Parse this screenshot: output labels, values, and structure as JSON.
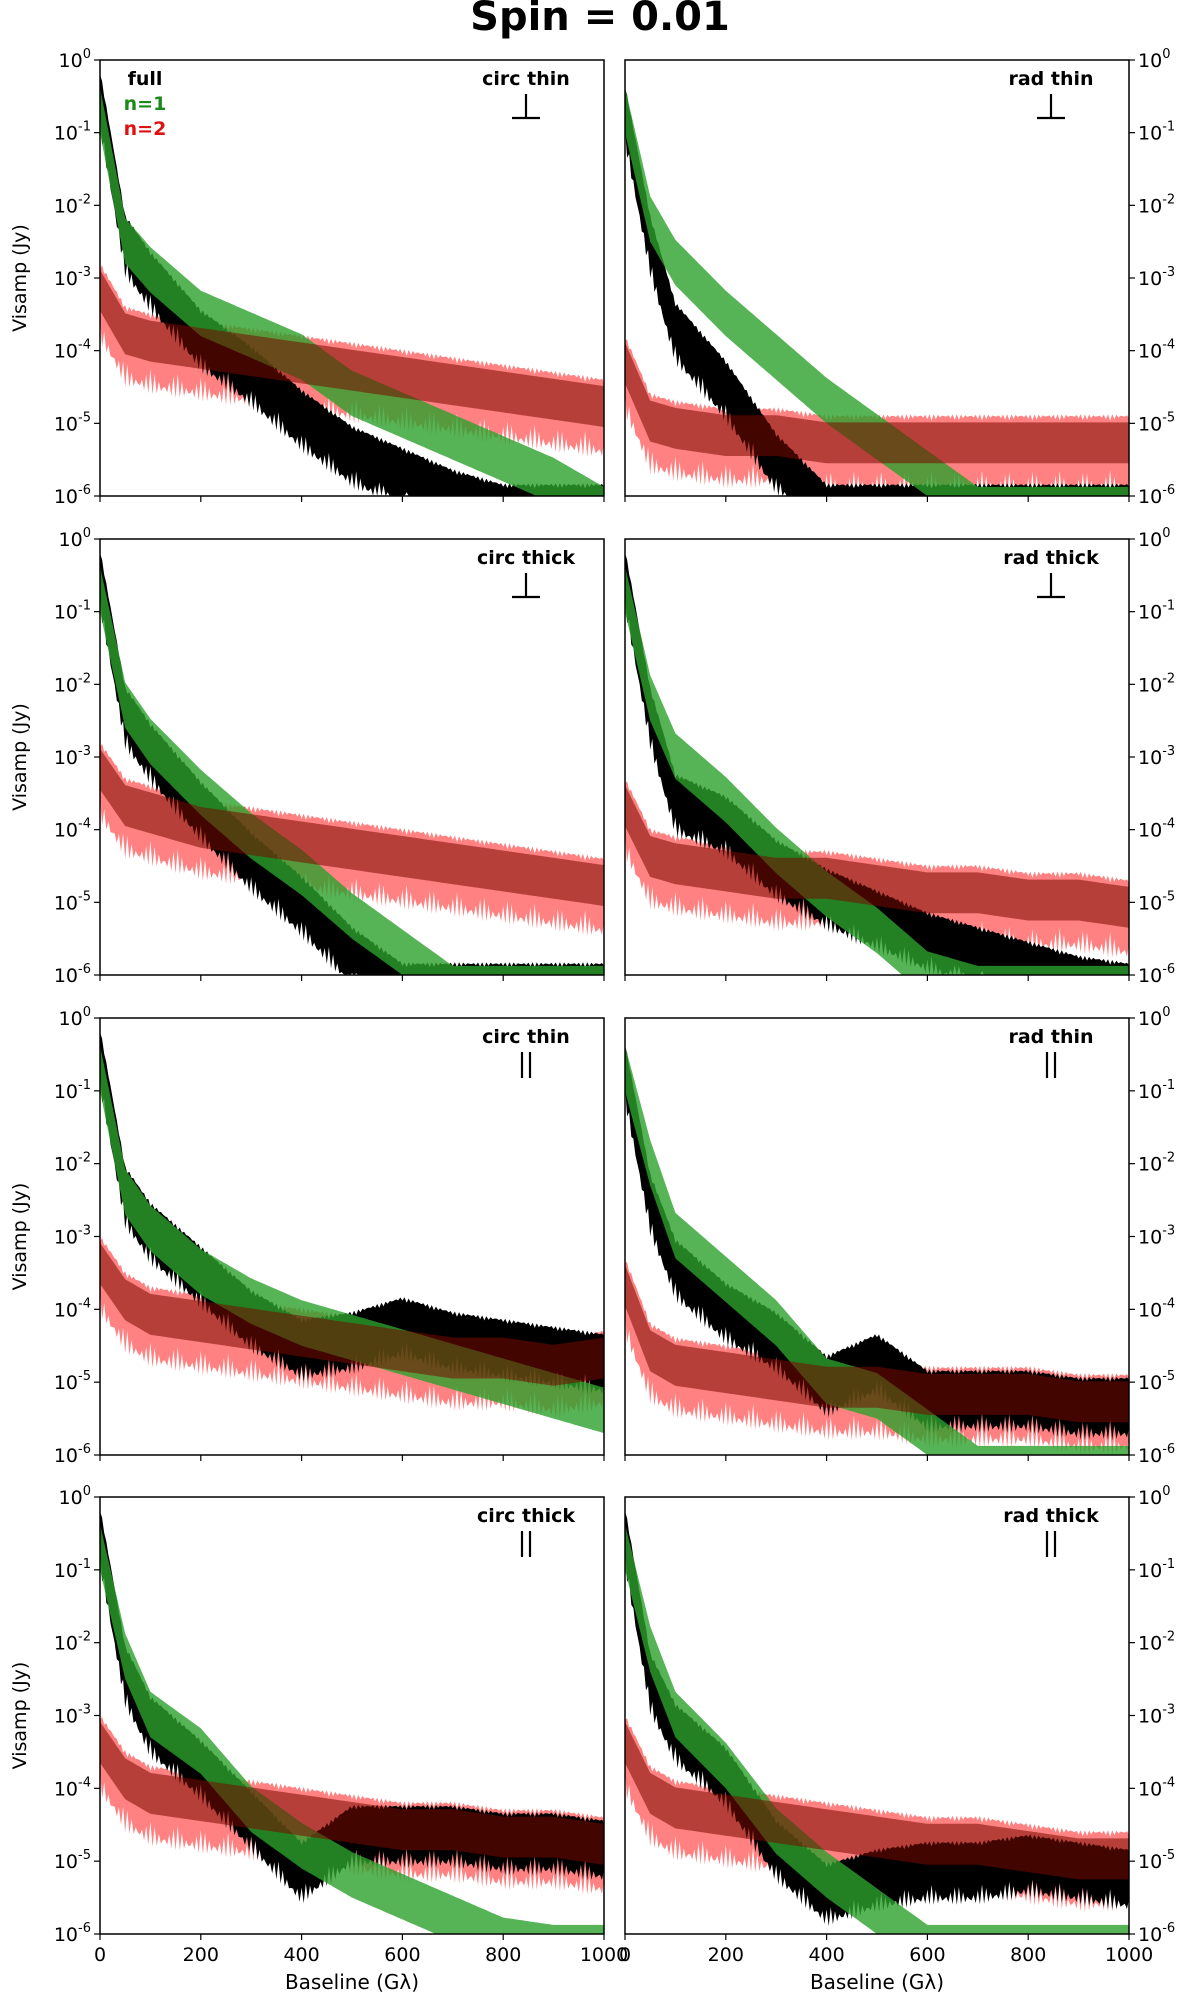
{
  "figure": {
    "title": "Spin = 0.01",
    "ylabel": "Visamp (Jy)",
    "xlabel": "Baseline (Gλ)",
    "xlim": [
      0,
      1000
    ],
    "ylim_exponent": [
      -6,
      0
    ],
    "yscale": "log",
    "x_ticks": [
      "0",
      "200",
      "400",
      "600",
      "800",
      "1000"
    ],
    "y_tick_base": "10",
    "y_tick_exponents": [
      "0",
      "-1",
      "-2",
      "-3",
      "-4",
      "-5",
      "-6"
    ],
    "colors": {
      "full": "#000000",
      "n1": "#2ca02c",
      "n2": "#ff6b6b",
      "overlap": "#7a0a00"
    }
  },
  "legend": [
    {
      "label": "full",
      "color": "#000000"
    },
    {
      "label": "n=1",
      "color": "#1a8a1a"
    },
    {
      "label": "n=2",
      "color": "#e01010"
    }
  ],
  "chart_data": [
    {
      "type": "area",
      "panel": "circ thin ⊥",
      "label": "circ thin",
      "symbol": "perp",
      "xlim": [
        0,
        1000
      ],
      "yscale": "log",
      "series": [
        {
          "name": "full",
          "x": [
            0,
            50,
            100,
            200,
            300,
            400,
            500,
            600,
            700,
            800,
            900,
            1000
          ],
          "y_exp": [
            -0.3,
            -2.3,
            -2.8,
            -3.6,
            -4.1,
            -4.7,
            -5.2,
            -5.5,
            -5.8,
            -6,
            -6,
            -6
          ]
        },
        {
          "name": "n=1",
          "x": [
            0,
            50,
            100,
            200,
            300,
            400,
            500,
            600,
            700,
            800,
            900,
            1000
          ],
          "y_exp": [
            -0.5,
            -2.3,
            -2.7,
            -3.3,
            -3.6,
            -3.9,
            -4.4,
            -4.7,
            -5.0,
            -5.3,
            -5.6,
            -6
          ]
        },
        {
          "name": "n=2",
          "x": [
            0,
            50,
            100,
            200,
            300,
            400,
            500,
            600,
            700,
            800,
            900,
            1000
          ],
          "y_exp": [
            -3.0,
            -3.6,
            -3.7,
            -3.8,
            -3.9,
            -4.0,
            -4.1,
            -4.2,
            -4.3,
            -4.4,
            -4.5,
            -4.6
          ]
        }
      ]
    },
    {
      "type": "area",
      "panel": "rad thin ⊥",
      "label": "rad thin",
      "symbol": "perp",
      "xlim": [
        0,
        1000
      ],
      "yscale": "log",
      "series": [
        {
          "name": "full",
          "x": [
            0,
            50,
            100,
            200,
            300,
            400,
            500,
            600,
            700,
            800,
            900,
            1000
          ],
          "y_exp": [
            -0.5,
            -2.3,
            -3.5,
            -4.3,
            -5.3,
            -6,
            -6,
            -6,
            -6,
            -6,
            -6,
            -6
          ]
        },
        {
          "name": "n=1",
          "x": [
            0,
            50,
            100,
            200,
            300,
            400,
            500,
            600,
            700,
            800,
            900,
            1000
          ],
          "y_exp": [
            -0.5,
            -2.0,
            -2.6,
            -3.3,
            -3.9,
            -4.5,
            -5.0,
            -5.5,
            -6,
            -6,
            -6,
            -6
          ]
        },
        {
          "name": "n=2",
          "x": [
            0,
            50,
            100,
            200,
            300,
            400,
            500,
            600,
            700,
            800,
            900,
            1000
          ],
          "y_exp": [
            -4.0,
            -4.8,
            -4.9,
            -5.0,
            -5.0,
            -5.1,
            -5.1,
            -5.1,
            -5.1,
            -5.1,
            -5.1,
            -5.1
          ]
        }
      ]
    },
    {
      "type": "area",
      "panel": "circ thick ⊥",
      "label": "circ thick",
      "symbol": "perp",
      "xlim": [
        0,
        1000
      ],
      "yscale": "log",
      "series": [
        {
          "name": "full",
          "x": [
            0,
            50,
            100,
            200,
            300,
            400,
            500,
            600,
            700,
            800,
            900,
            1000
          ],
          "y_exp": [
            -0.3,
            -2.2,
            -2.7,
            -3.5,
            -4.2,
            -4.8,
            -5.5,
            -6,
            -6,
            -6,
            -6,
            -6
          ]
        },
        {
          "name": "n=1",
          "x": [
            0,
            50,
            100,
            200,
            300,
            400,
            500,
            600,
            700,
            800,
            900,
            1000
          ],
          "y_exp": [
            -0.5,
            -2.1,
            -2.6,
            -3.3,
            -3.9,
            -4.4,
            -5.0,
            -5.5,
            -6,
            -6,
            -6,
            -6
          ]
        },
        {
          "name": "n=2",
          "x": [
            0,
            50,
            100,
            200,
            300,
            400,
            500,
            600,
            700,
            800,
            900,
            1000
          ],
          "y_exp": [
            -3.0,
            -3.5,
            -3.6,
            -3.8,
            -3.9,
            -4.0,
            -4.1,
            -4.2,
            -4.3,
            -4.4,
            -4.5,
            -4.6
          ]
        }
      ]
    },
    {
      "type": "area",
      "panel": "rad thick ⊥",
      "label": "rad thick",
      "symbol": "perp",
      "xlim": [
        0,
        1000
      ],
      "yscale": "log",
      "series": [
        {
          "name": "full",
          "x": [
            0,
            50,
            100,
            200,
            300,
            400,
            500,
            600,
            700,
            800,
            900,
            1000
          ],
          "y_exp": [
            -0.3,
            -2.2,
            -3.4,
            -3.7,
            -4.3,
            -4.7,
            -5.0,
            -5.3,
            -5.5,
            -5.7,
            -5.9,
            -6
          ]
        },
        {
          "name": "n=1",
          "x": [
            0,
            50,
            100,
            200,
            300,
            400,
            500,
            600,
            700,
            800,
            900,
            1000
          ],
          "y_exp": [
            -0.5,
            -2.0,
            -2.8,
            -3.4,
            -4.1,
            -4.7,
            -5.2,
            -5.8,
            -6,
            -6,
            -6,
            -6
          ]
        },
        {
          "name": "n=2",
          "x": [
            0,
            50,
            100,
            200,
            300,
            400,
            500,
            600,
            700,
            800,
            900,
            1000
          ],
          "y_exp": [
            -3.5,
            -4.2,
            -4.3,
            -4.4,
            -4.5,
            -4.5,
            -4.6,
            -4.7,
            -4.7,
            -4.8,
            -4.8,
            -4.9
          ]
        }
      ]
    },
    {
      "type": "area",
      "panel": "circ thin ∥",
      "label": "circ thin",
      "symbol": "par",
      "xlim": [
        0,
        1000
      ],
      "yscale": "log",
      "series": [
        {
          "name": "full",
          "x": [
            0,
            50,
            100,
            200,
            300,
            400,
            500,
            600,
            700,
            800,
            900,
            1000
          ],
          "y_exp": [
            -0.3,
            -2.2,
            -2.7,
            -3.3,
            -3.9,
            -4.3,
            -4.2,
            -4.0,
            -4.2,
            -4.3,
            -4.4,
            -4.5
          ]
        },
        {
          "name": "n=1",
          "x": [
            0,
            50,
            100,
            200,
            300,
            400,
            500,
            600,
            700,
            800,
            900,
            1000
          ],
          "y_exp": [
            -0.5,
            -2.2,
            -2.7,
            -3.3,
            -3.7,
            -4.0,
            -4.2,
            -4.4,
            -4.6,
            -4.8,
            -5.0,
            -5.2
          ]
        },
        {
          "name": "n=2",
          "x": [
            0,
            50,
            100,
            200,
            300,
            400,
            500,
            600,
            700,
            800,
            900,
            1000
          ],
          "y_exp": [
            -3.2,
            -3.7,
            -3.9,
            -4.0,
            -4.1,
            -4.2,
            -4.3,
            -4.4,
            -4.5,
            -4.5,
            -4.6,
            -4.5
          ]
        }
      ]
    },
    {
      "type": "area",
      "panel": "rad thin ∥",
      "label": "rad thin",
      "symbol": "par",
      "xlim": [
        0,
        1000
      ],
      "yscale": "log",
      "series": [
        {
          "name": "full",
          "x": [
            0,
            50,
            100,
            200,
            300,
            400,
            500,
            600,
            700,
            800,
            900,
            1000
          ],
          "y_exp": [
            -0.5,
            -2.3,
            -3.2,
            -3.8,
            -4.2,
            -4.8,
            -4.5,
            -5.0,
            -5.0,
            -5.0,
            -5.1,
            -5.1
          ]
        },
        {
          "name": "n=1",
          "x": [
            0,
            50,
            100,
            200,
            300,
            400,
            500,
            600,
            700,
            800,
            900,
            1000
          ],
          "y_exp": [
            -0.5,
            -1.8,
            -2.8,
            -3.4,
            -4.0,
            -4.8,
            -5.0,
            -5.5,
            -6,
            -6,
            -6,
            -6
          ]
        },
        {
          "name": "n=2",
          "x": [
            0,
            50,
            100,
            200,
            300,
            400,
            500,
            600,
            700,
            800,
            900,
            1000
          ],
          "y_exp": [
            -3.5,
            -4.4,
            -4.6,
            -4.7,
            -4.8,
            -4.9,
            -4.9,
            -5.0,
            -5.0,
            -5.0,
            -5.1,
            -5.1
          ]
        }
      ]
    },
    {
      "type": "area",
      "panel": "circ thick ∥",
      "label": "circ thick",
      "symbol": "par",
      "xlim": [
        0,
        1000
      ],
      "yscale": "log",
      "series": [
        {
          "name": "full",
          "x": [
            0,
            50,
            100,
            200,
            300,
            400,
            500,
            600,
            700,
            800,
            900,
            1000
          ],
          "y_exp": [
            -0.3,
            -2.2,
            -2.9,
            -3.5,
            -4.2,
            -4.9,
            -4.4,
            -4.4,
            -4.4,
            -4.5,
            -4.5,
            -4.6
          ]
        },
        {
          "name": "n=1",
          "x": [
            0,
            50,
            100,
            200,
            300,
            400,
            500,
            600,
            700,
            800,
            900,
            1000
          ],
          "y_exp": [
            -0.5,
            -2.0,
            -2.8,
            -3.3,
            -4.1,
            -4.6,
            -5.0,
            -5.3,
            -5.6,
            -5.9,
            -6,
            -6
          ]
        },
        {
          "name": "n=2",
          "x": [
            0,
            50,
            100,
            200,
            300,
            400,
            500,
            600,
            700,
            800,
            900,
            1000
          ],
          "y_exp": [
            -3.2,
            -3.7,
            -3.9,
            -4.0,
            -4.1,
            -4.2,
            -4.3,
            -4.4,
            -4.4,
            -4.5,
            -4.5,
            -4.6
          ]
        }
      ]
    },
    {
      "type": "area",
      "panel": "rad thick ∥",
      "label": "rad thick",
      "symbol": "par",
      "xlim": [
        0,
        1000
      ],
      "yscale": "log",
      "series": [
        {
          "name": "full",
          "x": [
            0,
            50,
            100,
            200,
            300,
            400,
            500,
            600,
            700,
            800,
            900,
            1000
          ],
          "y_exp": [
            -0.3,
            -2.3,
            -3.0,
            -3.6,
            -4.6,
            -5.2,
            -5.0,
            -4.9,
            -4.9,
            -4.8,
            -4.9,
            -5.0
          ]
        },
        {
          "name": "n=1",
          "x": [
            0,
            50,
            100,
            200,
            300,
            400,
            500,
            600,
            700,
            800,
            900,
            1000
          ],
          "y_exp": [
            -0.5,
            -1.9,
            -2.8,
            -3.5,
            -4.4,
            -5.0,
            -5.5,
            -6,
            -6,
            -6,
            -6,
            -6
          ]
        },
        {
          "name": "n=2",
          "x": [
            0,
            50,
            100,
            200,
            300,
            400,
            500,
            600,
            700,
            800,
            900,
            1000
          ],
          "y_exp": [
            -3.2,
            -3.9,
            -4.1,
            -4.2,
            -4.3,
            -4.4,
            -4.5,
            -4.6,
            -4.6,
            -4.7,
            -4.8,
            -4.8
          ]
        }
      ]
    }
  ]
}
